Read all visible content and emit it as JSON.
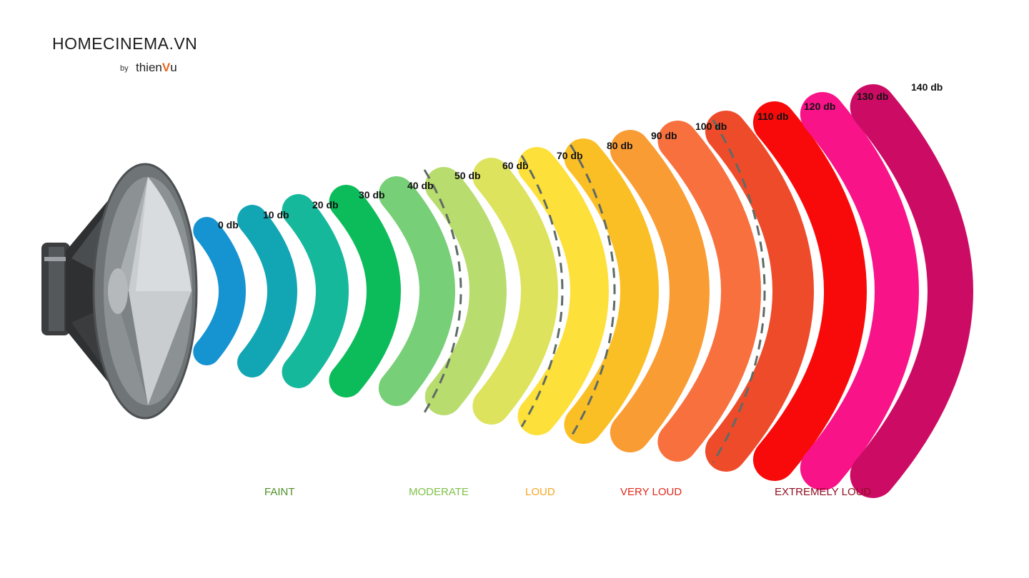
{
  "brand": {
    "title": "HOMECINEMA.VN",
    "by": "by",
    "sub_prefix": "thien",
    "sub_mark": "V",
    "sub_suffix": "u",
    "accent": "#e8661a"
  },
  "levels": [
    {
      "label": "0 db",
      "color": "#1693d1"
    },
    {
      "label": "10 db",
      "color": "#12a6b4"
    },
    {
      "label": "20 db",
      "color": "#16b89c"
    },
    {
      "label": "30 db",
      "color": "#0cbc5a"
    },
    {
      "label": "40 db",
      "color": "#77cf77"
    },
    {
      "label": "50 db",
      "color": "#b8dc6e"
    },
    {
      "label": "60 db",
      "color": "#dde35c"
    },
    {
      "label": "70 db",
      "color": "#fde03a"
    },
    {
      "label": "80 db",
      "color": "#fbbf26"
    },
    {
      "label": "90 db",
      "color": "#f99c34"
    },
    {
      "label": "100 db",
      "color": "#f8703e"
    },
    {
      "label": "110 db",
      "color": "#ee4b2b"
    },
    {
      "label": "120 db",
      "color": "#f80a0a"
    },
    {
      "label": "130 db",
      "color": "#f81389"
    },
    {
      "label": "140 db",
      "color": "#cc0c64"
    }
  ],
  "categories": [
    {
      "label": "FAINT",
      "color": "#4f8f29"
    },
    {
      "label": "MODERATE",
      "color": "#80c24a"
    },
    {
      "label": "LOUD",
      "color": "#f5a623"
    },
    {
      "label": "VERY LOUD",
      "color": "#e02a1e"
    },
    {
      "label": "EXTREMELY LOUD",
      "color": "#8e1022"
    }
  ]
}
